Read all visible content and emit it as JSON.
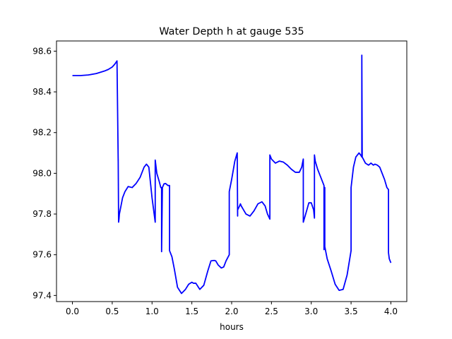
{
  "chart_data": {
    "type": "line",
    "title": "Water Depth h at gauge 535",
    "xlabel": "hours",
    "ylabel": "",
    "xlim": [
      -0.2,
      4.2
    ],
    "ylim": [
      97.37,
      98.65
    ],
    "xticks": [
      0.0,
      0.5,
      1.0,
      1.5,
      2.0,
      2.5,
      3.0,
      3.5,
      4.0
    ],
    "xtick_labels": [
      "0.0",
      "0.5",
      "1.0",
      "1.5",
      "2.0",
      "2.5",
      "3.0",
      "3.5",
      "4.0"
    ],
    "yticks": [
      97.4,
      97.6,
      97.8,
      98.0,
      98.2,
      98.4,
      98.6
    ],
    "ytick_labels": [
      "97.4",
      "97.6",
      "97.8",
      "98.0",
      "98.2",
      "98.4",
      "98.6"
    ],
    "grid": false,
    "legend": "none",
    "series": [
      {
        "color": "#0000ff",
        "x": [
          0.0,
          0.1,
          0.2,
          0.3,
          0.4,
          0.45,
          0.5,
          0.53,
          0.56,
          0.575,
          0.575,
          0.58,
          0.585,
          0.59,
          0.6,
          0.63,
          0.66,
          0.7,
          0.75,
          0.8,
          0.85,
          0.9,
          0.93,
          0.96,
          1.0,
          1.04,
          1.04,
          1.06,
          1.09,
          1.11,
          1.12,
          1.12,
          1.13,
          1.15,
          1.17,
          1.2,
          1.22,
          1.22,
          1.25,
          1.28,
          1.32,
          1.37,
          1.42,
          1.46,
          1.5,
          1.52,
          1.55,
          1.6,
          1.65,
          1.7,
          1.74,
          1.78,
          1.8,
          1.83,
          1.87,
          1.9,
          1.93,
          1.97,
          1.97,
          2.0,
          2.04,
          2.07,
          2.075,
          2.075,
          2.1,
          2.11,
          2.12,
          2.15,
          2.18,
          2.23,
          2.28,
          2.33,
          2.38,
          2.42,
          2.45,
          2.48,
          2.48,
          2.5,
          2.55,
          2.6,
          2.65,
          2.7,
          2.75,
          2.8,
          2.85,
          2.88,
          2.9,
          2.9,
          2.93,
          2.97,
          3.0,
          3.03,
          3.04,
          3.04,
          3.05,
          3.08,
          3.11,
          3.14,
          3.16,
          3.16,
          3.17,
          3.17,
          3.2,
          3.25,
          3.3,
          3.35,
          3.4,
          3.45,
          3.5,
          3.5,
          3.53,
          3.56,
          3.6,
          3.62,
          3.635,
          3.635,
          3.64,
          3.64,
          3.68,
          3.72,
          3.75,
          3.78,
          3.8,
          3.83,
          3.86,
          3.89,
          3.92,
          3.95,
          3.96,
          3.97,
          3.97,
          3.98,
          4.0
        ],
        "values": [
          98.48,
          98.48,
          98.483,
          98.49,
          98.502,
          98.51,
          98.522,
          98.535,
          98.552,
          98.06,
          98.07,
          97.76,
          97.775,
          97.8,
          97.82,
          97.88,
          97.91,
          97.935,
          97.93,
          97.95,
          97.98,
          98.03,
          98.045,
          98.03,
          97.88,
          97.76,
          98.065,
          98.0,
          97.96,
          97.93,
          97.93,
          97.615,
          97.93,
          97.948,
          97.95,
          97.94,
          97.94,
          97.62,
          97.59,
          97.53,
          97.44,
          97.41,
          97.43,
          97.455,
          97.465,
          97.46,
          97.46,
          97.43,
          97.45,
          97.52,
          97.57,
          97.572,
          97.57,
          97.55,
          97.535,
          97.54,
          97.57,
          97.6,
          97.91,
          97.97,
          98.06,
          98.1,
          97.79,
          97.82,
          97.84,
          97.85,
          97.84,
          97.82,
          97.8,
          97.79,
          97.815,
          97.85,
          97.86,
          97.84,
          97.8,
          97.775,
          98.09,
          98.07,
          98.05,
          98.06,
          98.055,
          98.04,
          98.02,
          98.005,
          98.005,
          98.03,
          98.07,
          97.76,
          97.8,
          97.855,
          97.855,
          97.82,
          97.78,
          98.09,
          98.06,
          98.02,
          97.99,
          97.96,
          97.94,
          97.625,
          97.93,
          97.64,
          97.58,
          97.52,
          97.455,
          97.425,
          97.43,
          97.5,
          97.62,
          97.93,
          98.03,
          98.08,
          98.1,
          98.09,
          98.08,
          98.58,
          98.1,
          98.08,
          98.05,
          98.04,
          98.05,
          98.04,
          98.045,
          98.04,
          98.03,
          98.0,
          97.97,
          97.93,
          97.925,
          97.92,
          97.61,
          97.58,
          97.56
        ]
      }
    ]
  }
}
